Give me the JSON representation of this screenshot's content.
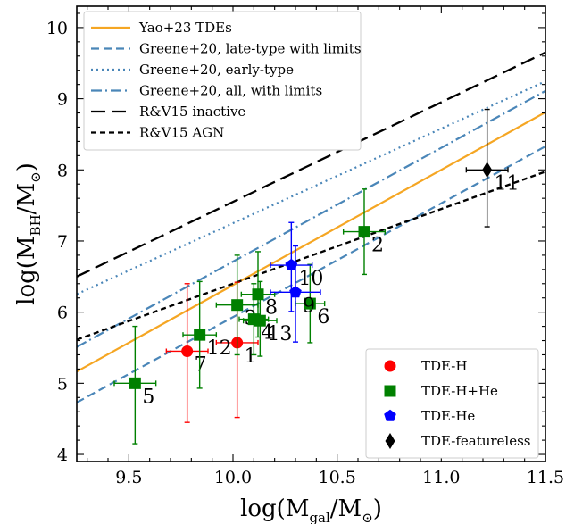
{
  "chart_data": {
    "type": "scatter",
    "xlabel": "log(M_gal/M_⊙)",
    "ylabel": "log(M_BH/M_⊙)",
    "xlabel_parts": {
      "pre": "log(M",
      "sub": "gal",
      "post": "/M",
      "sym": "⊙",
      "close": ")"
    },
    "ylabel_parts": {
      "pre": "log(M",
      "sub": "BH",
      "post": "/M",
      "sym": "⊙",
      "close": ")"
    },
    "xlim": [
      9.25,
      11.5
    ],
    "ylim": [
      3.9,
      10.3
    ],
    "xticks": [
      "9.5",
      "10.0",
      "10.5",
      "11.0",
      "11.5"
    ],
    "yticks": [
      "4",
      "5",
      "6",
      "7",
      "8",
      "9",
      "10"
    ],
    "lines": [
      {
        "name": "Yao+23 TDEs",
        "color": "#f5a623",
        "dash": "",
        "width": 2.2,
        "slope": 1.62,
        "intercept": -9.82
      },
      {
        "name": "Greene+20, late-type with limits",
        "color": "#4a86b8",
        "dash": "9,5",
        "width": 2.2,
        "slope": 1.6,
        "intercept": -10.07
      },
      {
        "name": "Greene+20, early-type",
        "color": "#4a86b8",
        "dash": "2,4",
        "width": 2.2,
        "slope": 1.33,
        "intercept": -6.05
      },
      {
        "name": "Greene+20, all, with limits",
        "color": "#4a86b8",
        "dash": "12,4,2,4",
        "width": 2.2,
        "slope": 1.6,
        "intercept": -9.29
      },
      {
        "name": "R&V15 inactive",
        "color": "#000000",
        "dash": "16,7",
        "width": 2.3,
        "slope": 1.4,
        "intercept": -6.45
      },
      {
        "name": "R&V15 AGN",
        "color": "#000000",
        "dash": "6,4",
        "width": 2.3,
        "slope": 1.05,
        "intercept": -4.1
      }
    ],
    "series": [
      {
        "name": "TDE-H",
        "color": "#ff0000",
        "marker": "circle",
        "points": [
          {
            "x": 10.02,
            "y": 5.57,
            "xerr": 0.1,
            "ylo": 1.05,
            "yhi": 0.85,
            "label": "1"
          },
          {
            "x": 9.78,
            "y": 5.45,
            "xerr": 0.1,
            "ylo": 1.0,
            "yhi": 0.95,
            "label": "7"
          }
        ]
      },
      {
        "name": "TDE-H+He",
        "color": "#008000",
        "marker": "square",
        "points": [
          {
            "x": 9.84,
            "y": 5.68,
            "xerr": 0.08,
            "ylo": 0.75,
            "yhi": 0.75,
            "label": "12"
          },
          {
            "x": 10.63,
            "y": 7.13,
            "xerr": 0.1,
            "ylo": 0.6,
            "yhi": 0.6,
            "label": "2"
          },
          {
            "x": 10.02,
            "y": 6.1,
            "xerr": 0.1,
            "ylo": 0.7,
            "yhi": 0.7,
            "label": "3"
          },
          {
            "x": 10.1,
            "y": 5.9,
            "xerr": 0.07,
            "ylo": 0.5,
            "yhi": 0.5,
            "label": "4"
          },
          {
            "x": 9.53,
            "y": 5.0,
            "xerr": 0.1,
            "ylo": 0.85,
            "yhi": 0.8,
            "label": "5"
          },
          {
            "x": 10.37,
            "y": 6.12,
            "xerr": 0.07,
            "ylo": 0.55,
            "yhi": 0.55,
            "label": "6"
          },
          {
            "x": 10.12,
            "y": 6.25,
            "xerr": 0.08,
            "ylo": 0.6,
            "yhi": 0.6,
            "label": "8"
          },
          {
            "x": 10.13,
            "y": 5.88,
            "xerr": 0.08,
            "ylo": 0.5,
            "yhi": 0.55,
            "label": "13"
          }
        ]
      },
      {
        "name": "TDE-He",
        "color": "#0000ff",
        "marker": "pentagon",
        "points": [
          {
            "x": 10.3,
            "y": 6.28,
            "xerr": 0.12,
            "ylo": 0.7,
            "yhi": 0.65,
            "label": "9"
          },
          {
            "x": 10.28,
            "y": 6.66,
            "xerr": 0.1,
            "ylo": 0.65,
            "yhi": 0.6,
            "label": "10"
          }
        ]
      },
      {
        "name": "TDE-featureless",
        "color": "#000000",
        "marker": "diamond",
        "points": [
          {
            "x": 11.22,
            "y": 8.0,
            "xerr": 0.1,
            "ylo": 0.8,
            "yhi": 0.85,
            "label": "11"
          }
        ]
      }
    ],
    "legend_lines_position": "upper-left",
    "legend_markers_position": "lower-right"
  }
}
